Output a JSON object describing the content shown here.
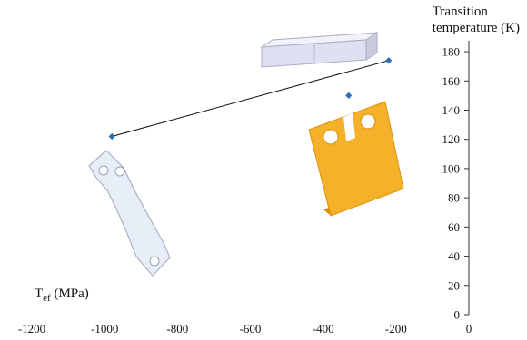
{
  "chart_data": {
    "type": "scatter",
    "x": [
      -980,
      -220,
      -330
    ],
    "y": [
      122,
      174,
      150
    ],
    "trendline": {
      "x": [
        -980,
        -220
      ],
      "y": [
        122,
        174
      ]
    },
    "xlim": [
      -1200,
      0
    ],
    "ylim": [
      0,
      185
    ],
    "xticks": [
      "-1200",
      "-1000",
      "-800",
      "-600",
      "-400",
      "-200",
      "0"
    ],
    "yticks": [
      "0",
      "20",
      "40",
      "60",
      "80",
      "100",
      "120",
      "140",
      "160",
      "180"
    ],
    "xlabel": {
      "main": "T",
      "sub": "ef",
      "unit": "(MPa)"
    },
    "ylabel": {
      "line1": "Transition",
      "line2": "temperature (K)"
    },
    "grid": false,
    "colors": {
      "points": "#2e6fb8",
      "line": "#111111",
      "bar_specimen": "#e4e6f5",
      "plate_specimen": "#f6b12b",
      "dogbone_specimen": "#e8eef8"
    },
    "illustrations": [
      "bar-specimen-image",
      "notched-plate-specimen-image",
      "dogbone-specimen-image"
    ]
  }
}
